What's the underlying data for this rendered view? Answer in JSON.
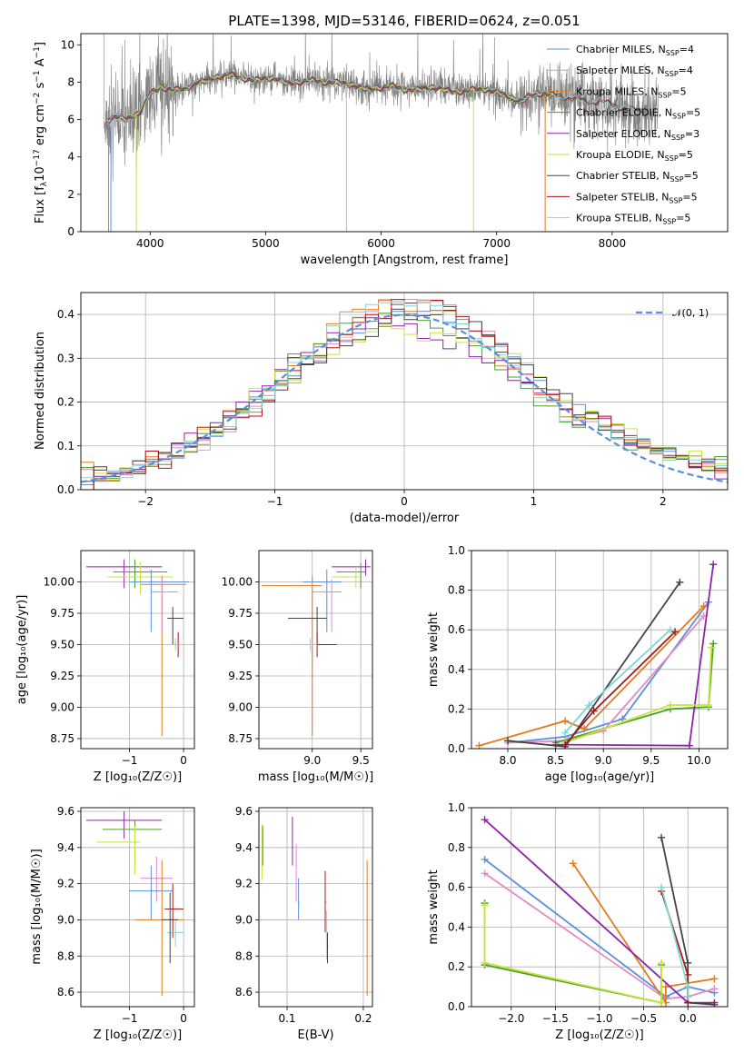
{
  "colors": {
    "c1": "#5b8fdd",
    "c2": "#e58ac4",
    "c3": "#e07b1e",
    "c4": "#4aa02c",
    "c5": "#8e24aa",
    "c6": "#c8e33a",
    "c7": "#444444",
    "c8": "#a51818",
    "c9": "#7fd6d6",
    "data": "#808080",
    "norm": "#5b8fdd"
  },
  "chart_data": [
    {
      "id": "spectrum",
      "type": "line",
      "title": "PLATE=1398, MJD=53146, FIBERID=0624, z=0.051",
      "xlabel": "wavelength [Angstrom, rest frame]",
      "ylabel": "Flux [f$_\\lambda$10$^{-17}$ erg cm$^{-2}$ s$^{-1}$ A$^{-1}$]",
      "ylabel_parts": [
        "Flux [f",
        "λ",
        "10",
        "−17",
        " erg cm",
        "−2",
        " s",
        "−1",
        " A",
        "−1",
        "]"
      ],
      "xlim": [
        3400,
        9000
      ],
      "ylim": [
        0,
        10.6
      ],
      "xticks": [
        4000,
        5000,
        6000,
        7000,
        8000
      ],
      "xtick_labels": [
        "4000",
        "5000",
        "6000",
        "7000",
        "8000"
      ],
      "yticks": [
        0,
        2,
        4,
        6,
        8,
        10
      ],
      "ytick_labels": [
        "0",
        "2",
        "4",
        "6",
        "8",
        "10"
      ],
      "legend": [
        {
          "name": "Chabrier MILES, N",
          "sub": "SSP",
          "n": "=4",
          "color": "c1"
        },
        {
          "name": "Salpeter MILES, N",
          "sub": "SSP",
          "n": "=4",
          "color": "c2"
        },
        {
          "name": "Kroupa MILES, N",
          "sub": "SSP",
          "n": "=5",
          "color": "c3"
        },
        {
          "name": "Chabrier ELODIE, N",
          "sub": "SSP",
          "n": "=5",
          "color": "c4"
        },
        {
          "name": "Salpeter ELODIE, N",
          "sub": "SSP",
          "n": "=3",
          "color": "c5"
        },
        {
          "name": "Kroupa ELODIE, N",
          "sub": "SSP",
          "n": "=5",
          "color": "c6"
        },
        {
          "name": "Chabrier STELIB, N",
          "sub": "SSP",
          "n": "=5",
          "color": "c7"
        },
        {
          "name": "Salpeter STELIB, N",
          "sub": "SSP",
          "n": "=5",
          "color": "c8"
        },
        {
          "name": "Kroupa STELIB, N",
          "sub": "SSP",
          "n": "=5",
          "color": "c9"
        }
      ],
      "continuum": [
        [
          3600,
          5.8
        ],
        [
          3700,
          6.2
        ],
        [
          3800,
          6.0
        ],
        [
          3900,
          6.3
        ],
        [
          4000,
          7.4
        ],
        [
          4100,
          7.7
        ],
        [
          4200,
          7.6
        ],
        [
          4300,
          7.6
        ],
        [
          4400,
          8.0
        ],
        [
          4500,
          8.1
        ],
        [
          4600,
          8.3
        ],
        [
          4700,
          8.4
        ],
        [
          4800,
          8.2
        ],
        [
          4900,
          8.1
        ],
        [
          5000,
          8.2
        ],
        [
          5100,
          8.2
        ],
        [
          5200,
          7.9
        ],
        [
          5300,
          8.0
        ],
        [
          5400,
          8.1
        ],
        [
          5500,
          8.0
        ],
        [
          5600,
          8.0
        ],
        [
          5700,
          7.9
        ],
        [
          5800,
          7.8
        ],
        [
          5900,
          7.6
        ],
        [
          6000,
          7.7
        ],
        [
          6100,
          7.8
        ],
        [
          6200,
          7.6
        ],
        [
          6300,
          7.6
        ],
        [
          6400,
          7.7
        ],
        [
          6500,
          7.7
        ],
        [
          6600,
          7.5
        ],
        [
          6700,
          7.5
        ],
        [
          6800,
          7.6
        ],
        [
          6900,
          7.6
        ],
        [
          7000,
          7.5
        ],
        [
          7100,
          7.2
        ],
        [
          7200,
          7.0
        ],
        [
          7300,
          7.3
        ],
        [
          7400,
          7.4
        ],
        [
          7500,
          7.3
        ],
        [
          7600,
          7.2
        ],
        [
          7700,
          7.1
        ],
        [
          7800,
          6.9
        ],
        [
          7900,
          7.0
        ],
        [
          8000,
          6.8
        ],
        [
          8100,
          6.6
        ],
        [
          8200,
          6.5
        ],
        [
          8300,
          6.4
        ]
      ]
    },
    {
      "id": "residuals",
      "type": "line",
      "xlabel": "(data-model)/error",
      "ylabel": "Normed distribution",
      "xlim": [
        -2.5,
        2.5
      ],
      "ylim": [
        0,
        0.45
      ],
      "xticks": [
        -2,
        -1,
        0,
        1,
        2
      ],
      "xtick_labels": [
        "−2",
        "−1",
        "0",
        "1",
        "2"
      ],
      "yticks": [
        0,
        0.1,
        0.2,
        0.3,
        0.4
      ],
      "ytick_labels": [
        "0.0",
        "0.1",
        "0.2",
        "0.3",
        "0.4"
      ],
      "grid": true,
      "legend": [
        {
          "name": "𝒩(0, 1)",
          "color": "norm"
        }
      ],
      "bin_width": 0.1
    },
    {
      "id": "age_vs_Z",
      "type": "scatter",
      "xlabel": "Z [log₁₀(Z/Z☉)]",
      "ylabel": "age  [log₁₀(age/yr)]",
      "xlim": [
        -1.9,
        0.2
      ],
      "ylim": [
        8.67,
        10.25
      ],
      "xticks": [
        -1,
        0
      ],
      "xtick_labels": [
        "−1",
        "0"
      ],
      "yticks": [
        8.75,
        9.0,
        9.25,
        9.5,
        9.75,
        10.0
      ],
      "ytick_labels": [
        "8.75",
        "9.00",
        "9.25",
        "9.50",
        "9.75",
        "10.00"
      ],
      "grid": true
    },
    {
      "id": "age_vs_mass",
      "type": "scatter",
      "xlabel": "mass [log₁₀(M/M☉)]",
      "xlim": [
        8.45,
        9.62
      ],
      "ylim": [
        8.67,
        10.25
      ],
      "xticks": [
        9.0,
        9.5
      ],
      "xtick_labels": [
        "9.0",
        "9.5"
      ],
      "yticks": [
        8.75,
        9.0,
        9.25,
        9.5,
        9.75,
        10.0
      ],
      "ytick_labels": [
        "8.75",
        "9.00",
        "9.25",
        "9.50",
        "9.75",
        "10.00"
      ],
      "grid": true
    },
    {
      "id": "weight_vs_age",
      "type": "line",
      "xlabel": "age  [log₁₀(age/yr)]",
      "ylabel": "mass weight",
      "xlim": [
        7.62,
        10.3
      ],
      "ylim": [
        0,
        1
      ],
      "xticks": [
        8.0,
        8.5,
        9.0,
        9.5,
        10.0
      ],
      "xtick_labels": [
        "8.0",
        "8.5",
        "9.0",
        "9.5",
        "10.0"
      ],
      "yticks": [
        0,
        0.2,
        0.4,
        0.6,
        0.8,
        1.0
      ],
      "ytick_labels": [
        "0.0",
        "0.2",
        "0.4",
        "0.6",
        "0.8",
        "1.0"
      ],
      "grid": true,
      "series": [
        {
          "color": "c1",
          "points": [
            [
              8.0,
              0.03
            ],
            [
              8.6,
              0.06
            ],
            [
              9.2,
              0.15
            ],
            [
              10.1,
              0.74
            ]
          ]
        },
        {
          "color": "c2",
          "points": [
            [
              8.0,
              0.03
            ],
            [
              8.6,
              0.04
            ],
            [
              9.0,
              0.09
            ],
            [
              10.05,
              0.67
            ]
          ]
        },
        {
          "color": "c3",
          "points": [
            [
              7.7,
              0.015
            ],
            [
              8.6,
              0.14
            ],
            [
              8.8,
              0.1
            ],
            [
              10.05,
              0.72
            ]
          ]
        },
        {
          "color": "c4",
          "points": [
            [
              8.5,
              0.03
            ],
            [
              9.7,
              0.2
            ],
            [
              10.1,
              0.21
            ],
            [
              10.15,
              0.53
            ]
          ]
        },
        {
          "color": "c5",
          "points": [
            [
              8.5,
              0.02
            ],
            [
              9.9,
              0.015
            ],
            [
              10.15,
              0.93
            ]
          ]
        },
        {
          "color": "c6",
          "points": [
            [
              8.6,
              0.03
            ],
            [
              9.7,
              0.22
            ],
            [
              10.1,
              0.22
            ],
            [
              10.13,
              0.51
            ]
          ]
        },
        {
          "color": "c7",
          "points": [
            [
              8.0,
              0.04
            ],
            [
              8.6,
              0.01
            ],
            [
              9.8,
              0.84
            ]
          ]
        },
        {
          "color": "c8",
          "points": [
            [
              8.6,
              0.02
            ],
            [
              8.9,
              0.19
            ],
            [
              9.75,
              0.59
            ]
          ]
        },
        {
          "color": "c9",
          "points": [
            [
              8.6,
              0.08
            ],
            [
              8.85,
              0.22
            ],
            [
              9.7,
              0.6
            ]
          ]
        }
      ]
    },
    {
      "id": "mass_vs_Z",
      "type": "scatter",
      "xlabel": "Z [log₁₀(Z/Z☉)]",
      "ylabel": "mass [log₁₀(M/M☉)]",
      "xlim": [
        -1.9,
        0.2
      ],
      "ylim": [
        8.52,
        9.62
      ],
      "xticks": [
        -1,
        0
      ],
      "xtick_labels": [
        "−1",
        "0"
      ],
      "yticks": [
        8.6,
        8.8,
        9.0,
        9.2,
        9.4,
        9.6
      ],
      "ytick_labels": [
        "8.6",
        "8.8",
        "9.0",
        "9.2",
        "9.4",
        "9.6"
      ],
      "grid": true
    },
    {
      "id": "mass_vs_ebv",
      "type": "scatter",
      "xlabel": "E(B-V)",
      "xlim": [
        0.063,
        0.212
      ],
      "ylim": [
        8.52,
        9.62
      ],
      "xticks": [
        0.1,
        0.2
      ],
      "xtick_labels": [
        "0.1",
        "0.2"
      ],
      "yticks": [
        8.6,
        8.8,
        9.0,
        9.2,
        9.4,
        9.6
      ],
      "ytick_labels": [
        "8.6",
        "8.8",
        "9.0",
        "9.2",
        "9.4",
        "9.6"
      ],
      "grid": true
    },
    {
      "id": "weight_vs_Z",
      "type": "line",
      "xlabel": "Z [log₁₀(Z/Z☉)]",
      "ylabel": "mass weight",
      "xlim": [
        -2.45,
        0.45
      ],
      "ylim": [
        0,
        1
      ],
      "xticks": [
        -2.0,
        -1.5,
        -1.0,
        -0.5,
        0.0
      ],
      "xtick_labels": [
        "−2.0",
        "−1.5",
        "−1.0",
        "−0.5",
        "0.0"
      ],
      "yticks": [
        0,
        0.2,
        0.4,
        0.6,
        0.8,
        1.0
      ],
      "ytick_labels": [
        "0.0",
        "0.2",
        "0.4",
        "0.6",
        "0.8",
        "1.0"
      ],
      "grid": true,
      "series": [
        {
          "color": "c1",
          "points": [
            [
              -2.3,
              0.74
            ],
            [
              -0.25,
              0.05
            ],
            [
              0.0,
              0.1
            ],
            [
              0.3,
              0.07
            ]
          ]
        },
        {
          "color": "c2",
          "points": [
            [
              -2.3,
              0.67
            ],
            [
              -0.25,
              0.04
            ],
            [
              0.0,
              0.05
            ],
            [
              0.3,
              0.09
            ]
          ]
        },
        {
          "color": "c3",
          "points": [
            [
              -1.3,
              0.72
            ],
            [
              -0.25,
              0.02
            ],
            [
              -0.25,
              0.1
            ],
            [
              0.3,
              0.14
            ]
          ]
        },
        {
          "color": "c4",
          "points": [
            [
              -2.3,
              0.52
            ],
            [
              -2.3,
              0.21
            ],
            [
              -0.3,
              0.02
            ],
            [
              -0.3,
              0.21
            ]
          ]
        },
        {
          "color": "c5",
          "points": [
            [
              -2.3,
              0.94
            ],
            [
              0.0,
              0.02
            ],
            [
              0.3,
              0.02
            ]
          ]
        },
        {
          "color": "c6",
          "points": [
            [
              -2.3,
              0.51
            ],
            [
              -2.3,
              0.22
            ],
            [
              -0.3,
              0.02
            ],
            [
              -0.3,
              0.22
            ]
          ]
        },
        {
          "color": "c7",
          "points": [
            [
              -0.3,
              0.85
            ],
            [
              0.0,
              0.22
            ],
            [
              0.0,
              0.02
            ],
            [
              0.3,
              0.01
            ]
          ]
        },
        {
          "color": "c8",
          "points": [
            [
              -0.3,
              0.58
            ],
            [
              0.0,
              0.16
            ],
            [
              0.0,
              0.02
            ]
          ]
        },
        {
          "color": "c9",
          "points": [
            [
              -0.3,
              0.6
            ],
            [
              0.0,
              0.1
            ],
            [
              0.0,
              0.05
            ]
          ]
        }
      ]
    }
  ]
}
